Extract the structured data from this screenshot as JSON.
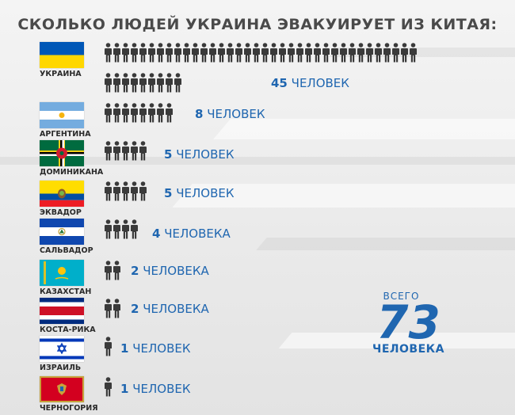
{
  "title": "СКОЛЬКО ЛЮДЕЙ УКРАИНА ЭВАКУИРУЕТ ИЗ КИТАЯ:",
  "colors": {
    "accent": "#1f66b0",
    "person": "#3a3a3a"
  },
  "rows": [
    {
      "country": "УКРАИНА",
      "flag": "ukraine-flag",
      "people": 45,
      "num": "45",
      "unit": "ЧЕЛОВЕК"
    },
    {
      "country": "АРГЕНТИНА",
      "flag": "argentina-flag",
      "people": 8,
      "num": "8",
      "unit": "ЧЕЛОВЕК"
    },
    {
      "country": "ДОМИНИКАНА",
      "flag": "dominica-flag",
      "people": 5,
      "num": "5",
      "unit": "ЧЕЛОВЕК"
    },
    {
      "country": "ЭКВАДОР",
      "flag": "ecuador-flag",
      "people": 5,
      "num": "5",
      "unit": "ЧЕЛОВЕК"
    },
    {
      "country": "САЛЬВАДОР",
      "flag": "el-salvador-flag",
      "people": 4,
      "num": "4",
      "unit": "ЧЕЛОВЕКА"
    },
    {
      "country": "КАЗАХСТАН",
      "flag": "kazakhstan-flag",
      "people": 2,
      "num": "2",
      "unit": "ЧЕЛОВЕКА"
    },
    {
      "country": "КОСТА-РИКА",
      "flag": "costa-rica-flag",
      "people": 2,
      "num": "2",
      "unit": "ЧЕЛОВЕКА"
    },
    {
      "country": "ИЗРАИЛЬ",
      "flag": "israel-flag",
      "people": 1,
      "num": "1",
      "unit": "ЧЕЛОВЕК"
    },
    {
      "country": "ЧЕРНОГОРИЯ",
      "flag": "montenegro-flag",
      "people": 1,
      "num": "1",
      "unit": "ЧЕЛОВЕК"
    }
  ],
  "total": {
    "label_top": "ВСЕГО",
    "value": "73",
    "label_bottom": "ЧЕЛОВЕКА"
  }
}
